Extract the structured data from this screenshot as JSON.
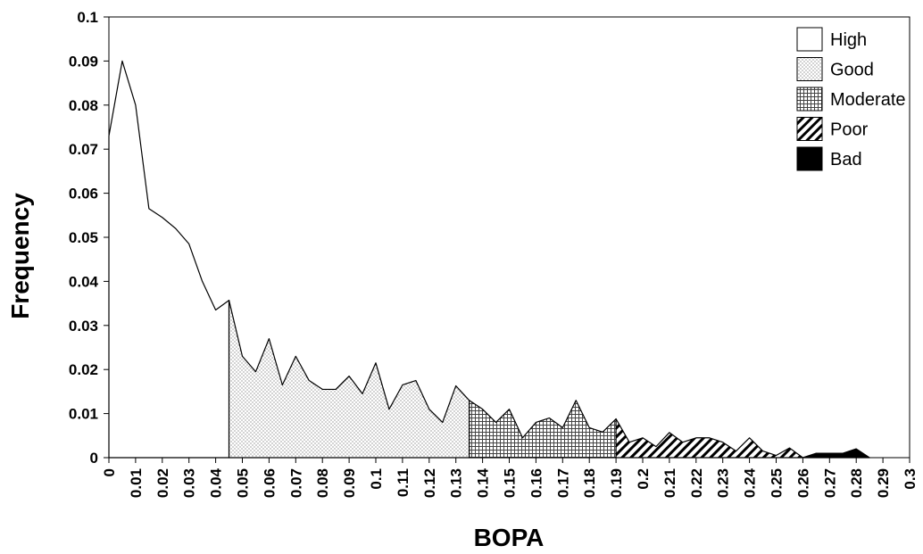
{
  "chart_data": {
    "type": "area",
    "x_label": "BOPA",
    "y_label": "Frequency",
    "xlim": [
      0,
      0.3
    ],
    "ylim": [
      0,
      0.1
    ],
    "xticks": [
      0,
      0.01,
      0.02,
      0.03,
      0.04,
      0.05,
      0.06,
      0.07,
      0.08,
      0.09,
      0.1,
      0.11,
      0.12,
      0.13,
      0.14,
      0.15,
      0.16,
      0.17,
      0.18,
      0.19,
      0.2,
      0.21,
      0.22,
      0.23,
      0.24,
      0.25,
      0.26,
      0.27,
      0.28,
      0.29,
      0.3
    ],
    "yticks": [
      0,
      0.01,
      0.02,
      0.03,
      0.04,
      0.05,
      0.06,
      0.07,
      0.08,
      0.09,
      0.1
    ],
    "legend": "upper right",
    "series": [
      {
        "name": "High",
        "pattern": "none",
        "color": "#ffffff",
        "x": [
          0,
          0.005,
          0.01,
          0.015,
          0.02,
          0.025,
          0.03,
          0.035,
          0.04,
          0.045
        ],
        "values": [
          0.073,
          0.09,
          0.08,
          0.0565,
          0.0545,
          0.052,
          0.0485,
          0.04,
          0.0335,
          0.0357
        ]
      },
      {
        "name": "Good",
        "pattern": "dots",
        "color": "#888888",
        "x": [
          0.045,
          0.05,
          0.055,
          0.06,
          0.065,
          0.07,
          0.075,
          0.08,
          0.085,
          0.09,
          0.095,
          0.1,
          0.105,
          0.11,
          0.115,
          0.12,
          0.125,
          0.13,
          0.135
        ],
        "values": [
          0.0357,
          0.023,
          0.0195,
          0.027,
          0.0165,
          0.023,
          0.0175,
          0.0155,
          0.0155,
          0.0185,
          0.0145,
          0.0215,
          0.011,
          0.0165,
          0.0175,
          0.011,
          0.008,
          0.0163,
          0.013
        ]
      },
      {
        "name": "Moderate",
        "pattern": "grid",
        "color": "#555555",
        "x": [
          0.135,
          0.14,
          0.145,
          0.15,
          0.155,
          0.16,
          0.165,
          0.17,
          0.175,
          0.18,
          0.185,
          0.19
        ],
        "values": [
          0.013,
          0.011,
          0.008,
          0.011,
          0.0045,
          0.008,
          0.009,
          0.0068,
          0.013,
          0.0068,
          0.0058,
          0.0088
        ]
      },
      {
        "name": "Poor",
        "pattern": "hatch",
        "color": "#000000",
        "x": [
          0.19,
          0.195,
          0.2,
          0.205,
          0.21,
          0.215,
          0.22,
          0.225,
          0.23,
          0.235,
          0.24,
          0.245,
          0.25,
          0.255,
          0.26
        ],
        "values": [
          0.0088,
          0.0035,
          0.0045,
          0.0025,
          0.0057,
          0.0035,
          0.0045,
          0.0045,
          0.0035,
          0.0015,
          0.0045,
          0.0015,
          0.0005,
          0.0022,
          0
        ]
      },
      {
        "name": "Bad",
        "pattern": "solid",
        "color": "#000000",
        "x": [
          0.26,
          0.265,
          0.27,
          0.275,
          0.28,
          0.285
        ],
        "values": [
          0,
          0.001,
          0.001,
          0.001,
          0.002,
          0
        ]
      }
    ]
  }
}
